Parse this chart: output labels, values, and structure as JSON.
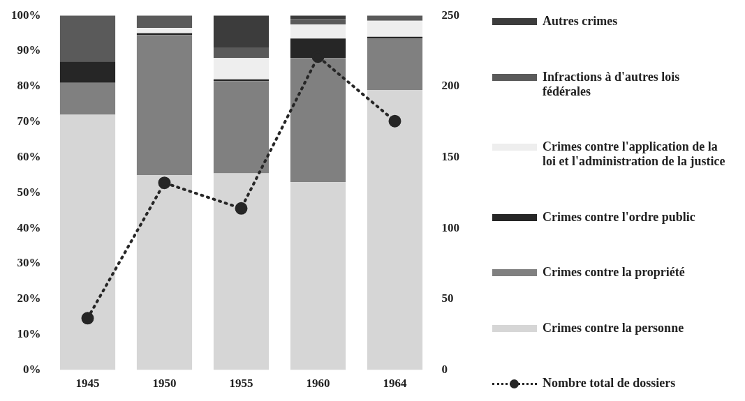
{
  "chart_data": {
    "type": "bar",
    "stacked": true,
    "categories": [
      "1945",
      "1950",
      "1955",
      "1960",
      "1964"
    ],
    "series": [
      {
        "name": "Crimes contre la personne",
        "color": "#d6d6d6",
        "values": [
          72,
          55,
          55.5,
          53,
          79
        ]
      },
      {
        "name": "Crimes contre la propriété",
        "color": "#808080",
        "values": [
          9,
          39.5,
          26,
          35,
          14.5
        ]
      },
      {
        "name": "Crimes contre l'ordre public",
        "color": "#262626",
        "values": [
          6,
          0.5,
          0.5,
          5.5,
          0.5
        ]
      },
      {
        "name": "Crimes contre l'application de la loi et l'administration de la justice",
        "color": "#eeeeee",
        "values": [
          0,
          1.5,
          6,
          4,
          4.5
        ]
      },
      {
        "name": "Infractions à d'autres lois fédérales",
        "color": "#5a5a5a",
        "values": [
          13,
          3.5,
          3,
          1.5,
          1.5
        ]
      },
      {
        "name": "Autres crimes",
        "color": "#3c3c3c",
        "values": [
          0,
          0,
          9,
          1,
          0
        ]
      },
      {
        "name": "Nombre total de dossiers",
        "type": "line",
        "axis": "y2",
        "color": "#262626",
        "line_style": "dotted",
        "marker": "circle",
        "values": [
          36.5,
          132,
          114,
          221,
          175.5
        ]
      }
    ],
    "ylim": [
      0,
      100
    ],
    "yticks": [
      {
        "value": 0,
        "label": "0%"
      },
      {
        "value": 10,
        "label": "10%"
      },
      {
        "value": 20,
        "label": "20%"
      },
      {
        "value": 30,
        "label": "30%"
      },
      {
        "value": 40,
        "label": "40%"
      },
      {
        "value": 50,
        "label": "50%"
      },
      {
        "value": 60,
        "label": "60%"
      },
      {
        "value": 70,
        "label": "70%"
      },
      {
        "value": 80,
        "label": "80%"
      },
      {
        "value": 90,
        "label": "90%"
      },
      {
        "value": 100,
        "label": "100%"
      }
    ],
    "y2lim": [
      0,
      250
    ],
    "y2ticks": [
      0,
      50,
      100,
      150,
      200,
      250
    ],
    "grid": false,
    "legend": "right"
  }
}
